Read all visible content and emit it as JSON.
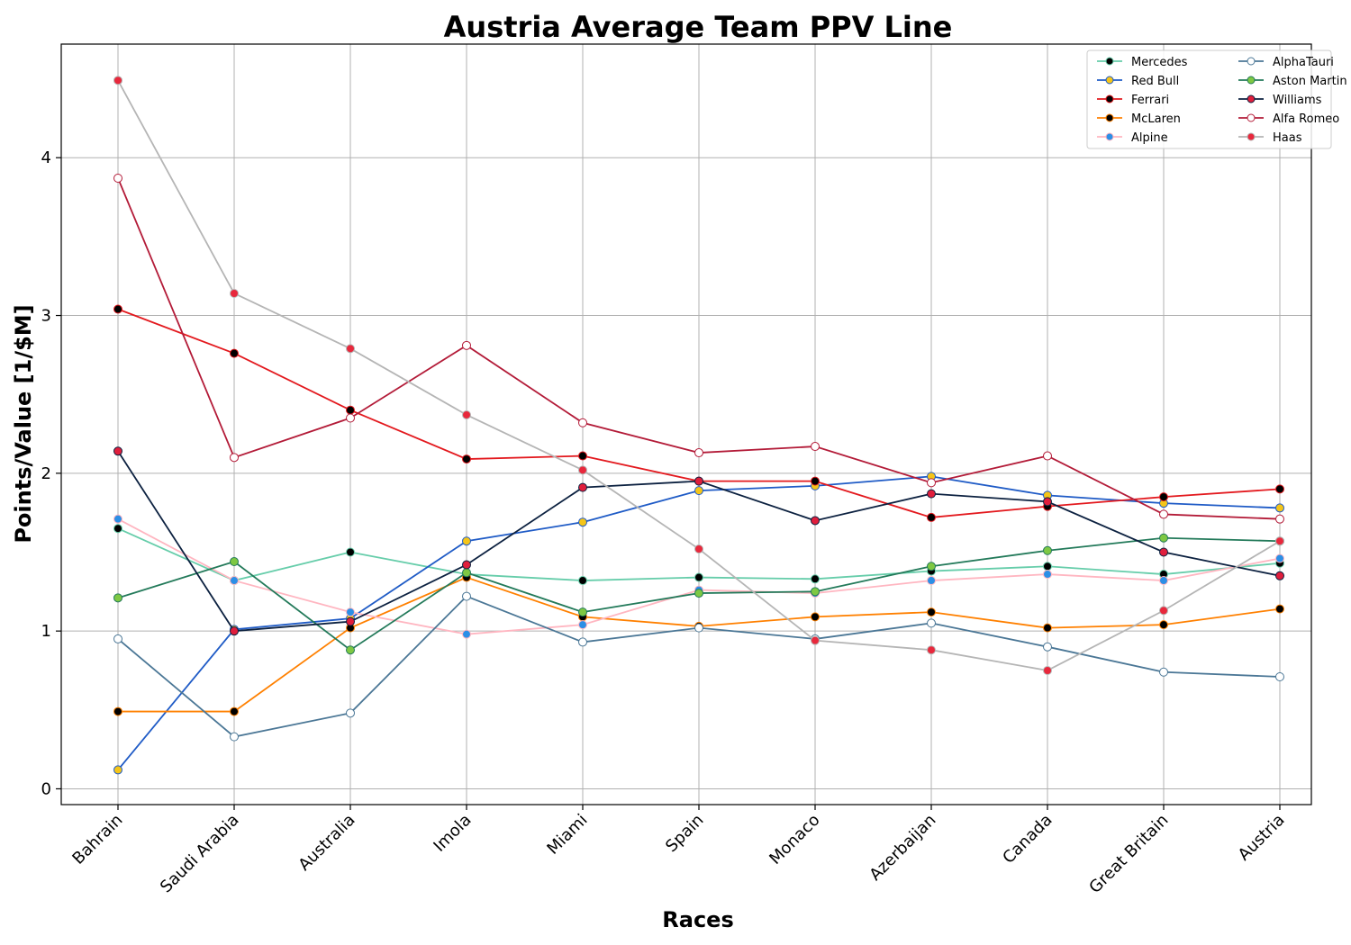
{
  "chart_data": {
    "type": "line",
    "title": "Austria Average Team PPV Line",
    "xlabel": "Races",
    "ylabel": "Points/Value [1/$M]",
    "categories": [
      "Bahrain",
      "Saudi Arabia",
      "Australia",
      "Imola",
      "Miami",
      "Spain",
      "Monaco",
      "Azerbaijan",
      "Canada",
      "Great Britain",
      "Austria"
    ],
    "ylim": [
      -0.1,
      4.72
    ],
    "yticks": [
      0,
      1,
      2,
      3,
      4
    ],
    "ytick_labels": [
      "0",
      "1",
      "2",
      "3",
      "4"
    ],
    "grid": true,
    "legend_position": "top-right",
    "legend_columns": 2,
    "series": [
      {
        "name": "Mercedes",
        "line_color": "#66cdaa",
        "marker_fill": "#000000",
        "marker_edge": "#66cdaa",
        "values": [
          1.65,
          1.32,
          1.5,
          1.36,
          1.32,
          1.34,
          1.33,
          1.38,
          1.41,
          1.36,
          1.43
        ]
      },
      {
        "name": "Red Bull",
        "line_color": "#1f5bc6",
        "marker_fill": "#f5c518",
        "marker_edge": "#1f5bc6",
        "values": [
          0.12,
          1.01,
          1.08,
          1.57,
          1.69,
          1.89,
          1.92,
          1.98,
          1.86,
          1.81,
          1.78
        ]
      },
      {
        "name": "Ferrari",
        "line_color": "#e3191e",
        "marker_fill": "#000000",
        "marker_edge": "#e3191e",
        "values": [
          3.04,
          2.76,
          2.4,
          2.09,
          2.11,
          1.95,
          1.95,
          1.72,
          1.79,
          1.85,
          1.9
        ]
      },
      {
        "name": "McLaren",
        "line_color": "#ff8000",
        "marker_fill": "#000000",
        "marker_edge": "#ff8000",
        "values": [
          0.49,
          0.49,
          1.02,
          1.34,
          1.09,
          1.03,
          1.09,
          1.12,
          1.02,
          1.04,
          1.14
        ]
      },
      {
        "name": "Alpine",
        "line_color": "#ffb6c1",
        "marker_fill": "#2b8fe6",
        "marker_edge": "#ffb6c1",
        "values": [
          1.71,
          1.32,
          1.12,
          0.98,
          1.04,
          1.26,
          1.24,
          1.32,
          1.36,
          1.32,
          1.46
        ]
      },
      {
        "name": "AlphaTauri",
        "line_color": "#4b7796",
        "marker_fill": "#ffffff",
        "marker_edge": "#4b7796",
        "values": [
          0.95,
          0.33,
          0.48,
          1.22,
          0.93,
          1.02,
          0.95,
          1.05,
          0.9,
          0.74,
          0.71
        ]
      },
      {
        "name": "Aston Martin",
        "line_color": "#237a5a",
        "marker_fill": "#7ec843",
        "marker_edge": "#237a5a",
        "values": [
          1.21,
          1.44,
          0.88,
          1.37,
          1.12,
          1.24,
          1.25,
          1.41,
          1.51,
          1.59,
          1.57
        ]
      },
      {
        "name": "Williams",
        "line_color": "#0c2140",
        "marker_fill": "#e01e3c",
        "marker_edge": "#0c2140",
        "values": [
          2.14,
          1.0,
          1.06,
          1.42,
          1.91,
          1.95,
          1.7,
          1.87,
          1.82,
          1.5,
          1.35
        ]
      },
      {
        "name": "Alfa Romeo",
        "line_color": "#b31b38",
        "marker_fill": "#ffffff",
        "marker_edge": "#b31b38",
        "values": [
          3.87,
          2.1,
          2.35,
          2.81,
          2.32,
          2.13,
          2.17,
          1.94,
          2.11,
          1.74,
          1.71
        ]
      },
      {
        "name": "Haas",
        "line_color": "#b5b5b5",
        "marker_fill": "#e8283c",
        "marker_edge": "#b5b5b5",
        "values": [
          4.49,
          3.14,
          2.79,
          2.37,
          2.02,
          1.52,
          0.94,
          0.88,
          0.75,
          1.13,
          1.57
        ]
      }
    ]
  }
}
